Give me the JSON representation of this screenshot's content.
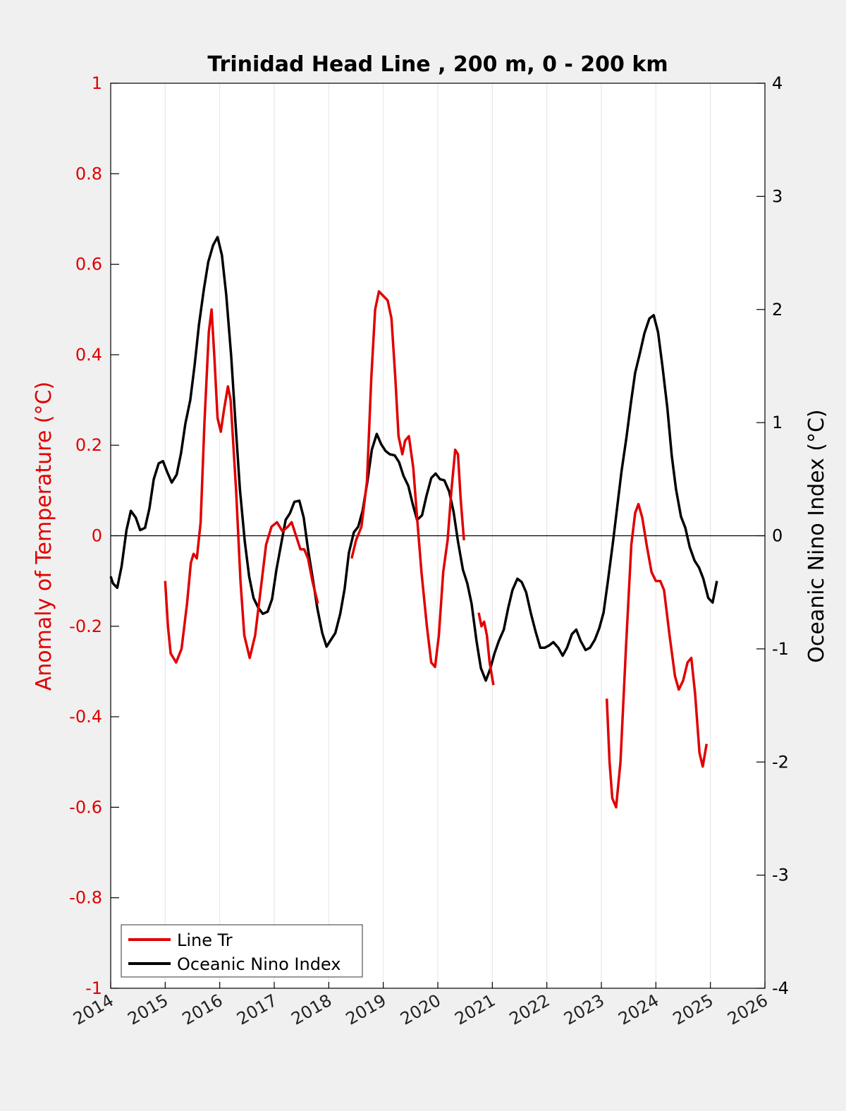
{
  "chart_data": {
    "type": "line",
    "title": "Trinidad Head Line , 200 m, 0 - 200 km",
    "ylabel_left": "Anomaly of Temperature (°C)",
    "ylabel_right": "Oceanic Nino Index (°C)",
    "xlabel": "",
    "xlim": [
      2014,
      2026
    ],
    "ylim_left": [
      -1,
      1
    ],
    "ylim_right": [
      -4,
      4
    ],
    "x_ticks": [
      "2014",
      "2015",
      "2016",
      "2017",
      "2018",
      "2019",
      "2020",
      "2021",
      "2022",
      "2023",
      "2024",
      "2025",
      "2026"
    ],
    "y_ticks_left": [
      "1",
      "0.8",
      "0.6",
      "0.4",
      "0.2",
      "0",
      "-0.2",
      "-0.4",
      "-0.6",
      "-0.8",
      "-1"
    ],
    "y_ticks_right": [
      "4",
      "3",
      "2",
      "1",
      "0",
      "-1",
      "-2",
      "-3",
      "-4"
    ],
    "grid": "vertical",
    "legend_position": "bottom-left",
    "colors": {
      "line_tr": "#e00000",
      "oni": "#000000"
    },
    "series": [
      {
        "name": "Line Tr",
        "axis": "left",
        "color": "#e00000",
        "segments": [
          [
            [
              2015.0,
              -0.1
            ],
            [
              2015.05,
              -0.2
            ],
            [
              2015.1,
              -0.26
            ],
            [
              2015.2,
              -0.28
            ],
            [
              2015.3,
              -0.25
            ],
            [
              2015.4,
              -0.15
            ],
            [
              2015.47,
              -0.06
            ],
            [
              2015.52,
              -0.04
            ],
            [
              2015.58,
              -0.05
            ],
            [
              2015.65,
              0.03
            ],
            [
              2015.72,
              0.25
            ],
            [
              2015.8,
              0.45
            ],
            [
              2015.85,
              0.5
            ],
            [
              2015.9,
              0.4
            ],
            [
              2015.96,
              0.26
            ],
            [
              2016.02,
              0.23
            ],
            [
              2016.08,
              0.28
            ],
            [
              2016.15,
              0.33
            ],
            [
              2016.2,
              0.3
            ],
            [
              2016.3,
              0.1
            ],
            [
              2016.38,
              -0.1
            ],
            [
              2016.45,
              -0.22
            ],
            [
              2016.55,
              -0.27
            ],
            [
              2016.65,
              -0.22
            ],
            [
              2016.75,
              -0.12
            ],
            [
              2016.85,
              -0.02
            ],
            [
              2016.95,
              0.02
            ],
            [
              2017.05,
              0.03
            ],
            [
              2017.15,
              0.01
            ],
            [
              2017.25,
              0.02
            ],
            [
              2017.32,
              0.03
            ],
            [
              2017.4,
              0.0
            ],
            [
              2017.48,
              -0.03
            ],
            [
              2017.55,
              -0.03
            ],
            [
              2017.62,
              -0.05
            ],
            [
              2017.7,
              -0.1
            ],
            [
              2017.8,
              -0.15
            ]
          ],
          [
            [
              2018.42,
              -0.05
            ],
            [
              2018.5,
              -0.01
            ],
            [
              2018.6,
              0.02
            ],
            [
              2018.7,
              0.12
            ],
            [
              2018.78,
              0.35
            ],
            [
              2018.85,
              0.5
            ],
            [
              2018.92,
              0.54
            ],
            [
              2019.0,
              0.53
            ],
            [
              2019.08,
              0.52
            ],
            [
              2019.15,
              0.48
            ],
            [
              2019.22,
              0.35
            ],
            [
              2019.28,
              0.22
            ],
            [
              2019.35,
              0.18
            ],
            [
              2019.4,
              0.21
            ],
            [
              2019.47,
              0.22
            ],
            [
              2019.55,
              0.15
            ],
            [
              2019.62,
              0.04
            ],
            [
              2019.7,
              -0.08
            ],
            [
              2019.8,
              -0.2
            ],
            [
              2019.88,
              -0.28
            ],
            [
              2019.95,
              -0.29
            ],
            [
              2020.02,
              -0.22
            ],
            [
              2020.1,
              -0.08
            ],
            [
              2020.18,
              -0.01
            ],
            [
              2020.25,
              0.1
            ],
            [
              2020.32,
              0.19
            ],
            [
              2020.37,
              0.18
            ],
            [
              2020.42,
              0.08
            ],
            [
              2020.48,
              -0.01
            ]
          ],
          [
            [
              2020.75,
              -0.17
            ],
            [
              2020.8,
              -0.2
            ],
            [
              2020.85,
              -0.19
            ],
            [
              2020.9,
              -0.22
            ],
            [
              2020.95,
              -0.28
            ],
            [
              2021.02,
              -0.33
            ]
          ],
          [
            [
              2023.1,
              -0.36
            ],
            [
              2023.15,
              -0.5
            ],
            [
              2023.2,
              -0.58
            ],
            [
              2023.27,
              -0.6
            ],
            [
              2023.35,
              -0.5
            ],
            [
              2023.45,
              -0.25
            ],
            [
              2023.55,
              -0.02
            ],
            [
              2023.62,
              0.05
            ],
            [
              2023.68,
              0.07
            ],
            [
              2023.75,
              0.04
            ],
            [
              2023.83,
              -0.02
            ],
            [
              2023.92,
              -0.08
            ],
            [
              2024.0,
              -0.1
            ],
            [
              2024.08,
              -0.1
            ],
            [
              2024.15,
              -0.12
            ],
            [
              2024.25,
              -0.22
            ],
            [
              2024.35,
              -0.31
            ],
            [
              2024.42,
              -0.34
            ],
            [
              2024.5,
              -0.32
            ],
            [
              2024.58,
              -0.28
            ],
            [
              2024.65,
              -0.27
            ],
            [
              2024.72,
              -0.35
            ],
            [
              2024.8,
              -0.48
            ],
            [
              2024.86,
              -0.51
            ],
            [
              2024.93,
              -0.46
            ]
          ]
        ]
      },
      {
        "name": "Oceanic Nino Index",
        "axis": "right",
        "color": "#000000",
        "segments": [
          [
            [
              2014.0,
              -0.36
            ],
            [
              2014.04,
              -0.42
            ],
            [
              2014.12,
              -0.46
            ],
            [
              2014.2,
              -0.27
            ],
            [
              2014.29,
              0.05
            ],
            [
              2014.37,
              0.22
            ],
            [
              2014.46,
              0.16
            ],
            [
              2014.54,
              0.05
            ],
            [
              2014.63,
              0.07
            ],
            [
              2014.71,
              0.24
            ],
            [
              2014.79,
              0.5
            ],
            [
              2014.88,
              0.64
            ],
            [
              2014.96,
              0.66
            ],
            [
              2015.04,
              0.56
            ],
            [
              2015.12,
              0.47
            ],
            [
              2015.21,
              0.54
            ],
            [
              2015.29,
              0.73
            ],
            [
              2015.37,
              0.99
            ],
            [
              2015.46,
              1.2
            ],
            [
              2015.54,
              1.51
            ],
            [
              2015.62,
              1.87
            ],
            [
              2015.71,
              2.18
            ],
            [
              2015.79,
              2.42
            ],
            [
              2015.88,
              2.57
            ],
            [
              2015.96,
              2.64
            ],
            [
              2016.04,
              2.48
            ],
            [
              2016.12,
              2.13
            ],
            [
              2016.21,
              1.59
            ],
            [
              2016.29,
              0.99
            ],
            [
              2016.37,
              0.41
            ],
            [
              2016.46,
              -0.05
            ],
            [
              2016.54,
              -0.36
            ],
            [
              2016.62,
              -0.55
            ],
            [
              2016.71,
              -0.64
            ],
            [
              2016.79,
              -0.69
            ],
            [
              2016.88,
              -0.67
            ],
            [
              2016.96,
              -0.56
            ],
            [
              2017.04,
              -0.3
            ],
            [
              2017.12,
              -0.09
            ],
            [
              2017.21,
              0.14
            ],
            [
              2017.29,
              0.2
            ],
            [
              2017.37,
              0.3
            ],
            [
              2017.46,
              0.31
            ],
            [
              2017.54,
              0.16
            ],
            [
              2017.62,
              -0.12
            ],
            [
              2017.71,
              -0.39
            ],
            [
              2017.79,
              -0.64
            ],
            [
              2017.88,
              -0.86
            ],
            [
              2017.96,
              -0.98
            ],
            [
              2018.04,
              -0.92
            ],
            [
              2018.12,
              -0.86
            ],
            [
              2018.21,
              -0.69
            ],
            [
              2018.29,
              -0.47
            ],
            [
              2018.37,
              -0.15
            ],
            [
              2018.46,
              0.03
            ],
            [
              2018.54,
              0.08
            ],
            [
              2018.62,
              0.22
            ],
            [
              2018.71,
              0.48
            ],
            [
              2018.79,
              0.76
            ],
            [
              2018.88,
              0.9
            ],
            [
              2018.96,
              0.81
            ],
            [
              2019.04,
              0.75
            ],
            [
              2019.12,
              0.72
            ],
            [
              2019.21,
              0.71
            ],
            [
              2019.29,
              0.65
            ],
            [
              2019.37,
              0.53
            ],
            [
              2019.46,
              0.44
            ],
            [
              2019.54,
              0.28
            ],
            [
              2019.62,
              0.14
            ],
            [
              2019.71,
              0.18
            ],
            [
              2019.79,
              0.35
            ],
            [
              2019.88,
              0.51
            ],
            [
              2019.96,
              0.55
            ],
            [
              2020.04,
              0.5
            ],
            [
              2020.12,
              0.49
            ],
            [
              2020.21,
              0.39
            ],
            [
              2020.29,
              0.21
            ],
            [
              2020.37,
              -0.05
            ],
            [
              2020.46,
              -0.3
            ],
            [
              2020.54,
              -0.42
            ],
            [
              2020.62,
              -0.6
            ],
            [
              2020.71,
              -0.93
            ],
            [
              2020.79,
              -1.17
            ],
            [
              2020.88,
              -1.28
            ],
            [
              2020.96,
              -1.18
            ],
            [
              2021.04,
              -1.04
            ],
            [
              2021.12,
              -0.93
            ],
            [
              2021.21,
              -0.83
            ],
            [
              2021.29,
              -0.64
            ],
            [
              2021.37,
              -0.48
            ],
            [
              2021.46,
              -0.38
            ],
            [
              2021.54,
              -0.41
            ],
            [
              2021.62,
              -0.5
            ],
            [
              2021.71,
              -0.69
            ],
            [
              2021.79,
              -0.84
            ],
            [
              2021.88,
              -0.99
            ],
            [
              2021.96,
              -0.99
            ],
            [
              2022.04,
              -0.97
            ],
            [
              2022.12,
              -0.94
            ],
            [
              2022.21,
              -0.99
            ],
            [
              2022.29,
              -1.06
            ],
            [
              2022.37,
              -0.99
            ],
            [
              2022.46,
              -0.87
            ],
            [
              2022.54,
              -0.83
            ],
            [
              2022.62,
              -0.93
            ],
            [
              2022.71,
              -1.01
            ],
            [
              2022.79,
              -0.99
            ],
            [
              2022.88,
              -0.92
            ],
            [
              2022.96,
              -0.82
            ],
            [
              2023.04,
              -0.68
            ],
            [
              2023.12,
              -0.4
            ],
            [
              2023.21,
              -0.07
            ],
            [
              2023.29,
              0.25
            ],
            [
              2023.37,
              0.57
            ],
            [
              2023.46,
              0.87
            ],
            [
              2023.54,
              1.17
            ],
            [
              2023.62,
              1.44
            ],
            [
              2023.71,
              1.62
            ],
            [
              2023.79,
              1.79
            ],
            [
              2023.88,
              1.92
            ],
            [
              2023.96,
              1.95
            ],
            [
              2024.04,
              1.8
            ],
            [
              2024.12,
              1.5
            ],
            [
              2024.21,
              1.13
            ],
            [
              2024.29,
              0.71
            ],
            [
              2024.37,
              0.41
            ],
            [
              2024.46,
              0.17
            ],
            [
              2024.54,
              0.07
            ],
            [
              2024.62,
              -0.1
            ],
            [
              2024.71,
              -0.22
            ],
            [
              2024.79,
              -0.28
            ],
            [
              2024.87,
              -0.38
            ],
            [
              2024.96,
              -0.55
            ],
            [
              2025.04,
              -0.59
            ],
            [
              2025.12,
              -0.4
            ]
          ]
        ]
      }
    ]
  }
}
